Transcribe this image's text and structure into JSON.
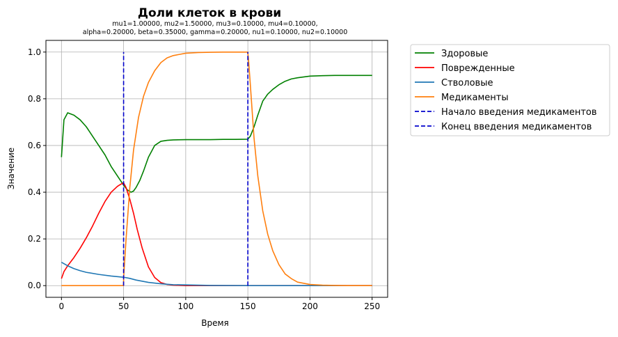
{
  "chart_data": {
    "type": "line",
    "title": "Доли клеток в крови",
    "subtitle_lines": [
      "mu1=1.00000, mu2=1.50000, mu3=0.10000, mu4=0.10000,",
      "alpha=0.20000, beta=0.35000, gamma=0.20000, nu1=0.10000, nu2=0.10000"
    ],
    "xlabel": "Время",
    "ylabel": "Значение",
    "xlim": [
      -12.5,
      262.5
    ],
    "ylim": [
      -0.05,
      1.05
    ],
    "xticks": [
      0,
      50,
      100,
      150,
      200,
      250
    ],
    "xtick_labels": [
      "0",
      "50",
      "100",
      "150",
      "200",
      "250"
    ],
    "yticks": [
      0.0,
      0.2,
      0.4,
      0.6,
      0.8,
      1.0
    ],
    "ytick_labels": [
      "0.0",
      "0.2",
      "0.4",
      "0.6",
      "0.8",
      "1.0"
    ],
    "grid": true,
    "legend_position": "outside-right-top",
    "series": [
      {
        "name": "Здоровые",
        "color": "#008000",
        "dash": "solid",
        "x": [
          0,
          2,
          5,
          10,
          15,
          20,
          25,
          30,
          35,
          40,
          45,
          50,
          53,
          56,
          58,
          60,
          63,
          66,
          70,
          75,
          80,
          85,
          90,
          100,
          110,
          120,
          130,
          140,
          150,
          152,
          155,
          158,
          162,
          166,
          170,
          175,
          180,
          185,
          190,
          200,
          210,
          220,
          230,
          240,
          250
        ],
        "y": [
          0.55,
          0.71,
          0.74,
          0.73,
          0.71,
          0.68,
          0.64,
          0.6,
          0.56,
          0.51,
          0.47,
          0.43,
          0.41,
          0.4,
          0.405,
          0.42,
          0.45,
          0.49,
          0.55,
          0.6,
          0.618,
          0.622,
          0.624,
          0.625,
          0.625,
          0.625,
          0.626,
          0.626,
          0.627,
          0.64,
          0.68,
          0.73,
          0.79,
          0.82,
          0.84,
          0.86,
          0.875,
          0.885,
          0.89,
          0.897,
          0.899,
          0.9,
          0.9,
          0.9,
          0.9
        ]
      },
      {
        "name": "Поврежденные",
        "color": "#ff0000",
        "dash": "solid",
        "x": [
          0,
          2,
          5,
          10,
          15,
          20,
          25,
          30,
          35,
          40,
          45,
          48,
          50,
          52,
          55,
          58,
          61,
          65,
          70,
          75,
          80,
          85,
          90,
          100,
          120,
          150,
          200,
          250
        ],
        "y": [
          0.03,
          0.06,
          0.085,
          0.12,
          0.16,
          0.205,
          0.255,
          0.31,
          0.36,
          0.4,
          0.425,
          0.435,
          0.44,
          0.42,
          0.37,
          0.31,
          0.24,
          0.16,
          0.08,
          0.035,
          0.013,
          0.005,
          0.002,
          0.0,
          0.0,
          0.0,
          0.0,
          0.0
        ]
      },
      {
        "name": "Стволовые",
        "color": "#1f77b4",
        "dash": "solid",
        "x": [
          0,
          5,
          10,
          15,
          20,
          30,
          40,
          50,
          55,
          60,
          70,
          80,
          90,
          100,
          120,
          150,
          200,
          250
        ],
        "y": [
          0.1,
          0.085,
          0.073,
          0.064,
          0.057,
          0.048,
          0.041,
          0.036,
          0.031,
          0.024,
          0.014,
          0.008,
          0.004,
          0.003,
          0.001,
          0.0,
          0.0,
          0.0
        ]
      },
      {
        "name": "Медикаменты",
        "color": "#ff7f0e",
        "dash": "solid",
        "x": [
          0,
          25,
          49.9,
          50.1,
          52,
          55,
          58,
          62,
          66,
          70,
          75,
          80,
          85,
          90,
          95,
          100,
          110,
          120,
          130,
          140,
          149.9,
          150.5,
          152,
          155,
          158,
          162,
          166,
          170,
          175,
          180,
          185,
          190,
          200,
          210,
          220,
          230,
          250
        ],
        "y": [
          0.0,
          0.0,
          0.0,
          0.04,
          0.2,
          0.42,
          0.58,
          0.72,
          0.81,
          0.87,
          0.92,
          0.955,
          0.975,
          0.985,
          0.99,
          0.995,
          0.998,
          0.999,
          1.0,
          1.0,
          1.0,
          0.97,
          0.86,
          0.63,
          0.47,
          0.32,
          0.22,
          0.15,
          0.09,
          0.05,
          0.03,
          0.015,
          0.005,
          0.002,
          0.001,
          0.0,
          0.0
        ]
      },
      {
        "name": "Начало введения медикаментов",
        "color": "#0000cc",
        "dash": "dashed",
        "x": [
          50,
          50
        ],
        "y": [
          0.0,
          1.0
        ]
      },
      {
        "name": "Конец введения медикаментов",
        "color": "#0000cc",
        "dash": "dashed",
        "x": [
          150,
          150
        ],
        "y": [
          0.0,
          1.0
        ]
      }
    ]
  }
}
